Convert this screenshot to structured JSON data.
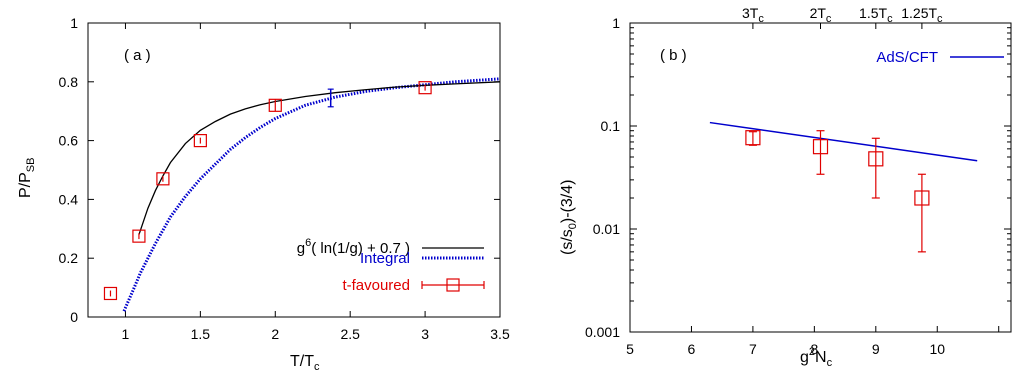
{
  "chart_data": [
    {
      "type": "line",
      "panel_label": "( a )",
      "xlabel": {
        "main": "T/T",
        "sub": "c"
      },
      "ylabel": {
        "main": "P/P",
        "sub": "SB"
      },
      "xlim": [
        0.75,
        3.5
      ],
      "ylim": [
        0,
        1
      ],
      "x_ticks": [
        "1",
        "1.5",
        "2",
        "2.5",
        "3",
        "3.5"
      ],
      "y_ticks": [
        "0",
        "0.2",
        "0.4",
        "0.6",
        "0.8",
        "1"
      ],
      "grid": false,
      "legend_position": "bottom-right",
      "legend": [
        {
          "label_parts": [
            "g",
            "6",
            "( ln(1/g) + 0.7 )"
          ],
          "color": "#000000",
          "style": "solid"
        },
        {
          "label": "Integral",
          "color": "#0000cc",
          "style": "dotted"
        },
        {
          "label": "t-favoured",
          "color": "#e00000",
          "style": "square-errorbar"
        }
      ],
      "series": [
        {
          "key": "g6",
          "color": "#000000",
          "x": [
            1.09,
            1.15,
            1.2,
            1.25,
            1.3,
            1.4,
            1.5,
            1.6,
            1.7,
            1.8,
            1.9,
            2.0,
            2.2,
            2.4,
            2.6,
            2.8,
            3.0,
            3.2,
            3.5
          ],
          "y": [
            0.28,
            0.37,
            0.43,
            0.48,
            0.525,
            0.59,
            0.635,
            0.665,
            0.69,
            0.708,
            0.722,
            0.733,
            0.75,
            0.763,
            0.773,
            0.782,
            0.788,
            0.793,
            0.8
          ]
        },
        {
          "key": "integral",
          "color": "#0000cc",
          "x": [
            0.99,
            1.05,
            1.1,
            1.2,
            1.3,
            1.4,
            1.5,
            1.6,
            1.7,
            1.8,
            1.9,
            2.0,
            2.2,
            2.4,
            2.6,
            2.8,
            3.0,
            3.2,
            3.5
          ],
          "y": [
            0.02,
            0.09,
            0.15,
            0.25,
            0.34,
            0.41,
            0.47,
            0.52,
            0.57,
            0.61,
            0.645,
            0.675,
            0.72,
            0.748,
            0.767,
            0.78,
            0.79,
            0.8,
            0.81
          ],
          "markers": [
            {
              "x": 2.37,
              "y": 0.745,
              "err": 0.03
            }
          ]
        },
        {
          "key": "tfav",
          "color": "#e00000",
          "points": [
            {
              "x": 0.9,
              "y": 0.08,
              "err": 0.01
            },
            {
              "x": 1.09,
              "y": 0.275,
              "err": 0.01
            },
            {
              "x": 1.25,
              "y": 0.47,
              "err": 0.01
            },
            {
              "x": 1.5,
              "y": 0.6,
              "err": 0.01
            },
            {
              "x": 2.0,
              "y": 0.72,
              "err": 0.02
            },
            {
              "x": 3.0,
              "y": 0.78,
              "err": 0.01
            }
          ]
        }
      ]
    },
    {
      "type": "line",
      "panel_label": "( b )",
      "xlabel": {
        "pre": "g",
        "sup": "2",
        "mid": "N",
        "sub": "c"
      },
      "ylabel": {
        "pre": "(s/s",
        "sub": "0",
        "post": ")-(3/4)"
      },
      "xlim": [
        5,
        11.2
      ],
      "ylim": [
        0.001,
        1
      ],
      "y_scale": "log",
      "x_ticks": [
        "5",
        "6",
        "7",
        "8",
        "9",
        "10"
      ],
      "y_ticks": [
        "0.001",
        "0.01",
        "0.1",
        "1"
      ],
      "top_ticks": [
        {
          "x": 7.0,
          "main": "3T",
          "sub": "c"
        },
        {
          "x": 8.1,
          "main": "2T",
          "sub": "c"
        },
        {
          "x": 9.0,
          "main": "1.5T",
          "sub": "c"
        },
        {
          "x": 9.75,
          "main": "1.25T",
          "sub": "c"
        }
      ],
      "grid": false,
      "legend_position": "top-right",
      "legend": [
        {
          "label": "AdS/CFT",
          "color": "#0000cc",
          "style": "solid"
        }
      ],
      "series": [
        {
          "key": "ads",
          "color": "#0000cc",
          "x": [
            6.3,
            10.65
          ],
          "y": [
            0.108,
            0.046
          ]
        },
        {
          "key": "points",
          "color": "#e00000",
          "points": [
            {
              "x": 7.0,
              "y": 0.077,
              "lo": 0.065,
              "hi": 0.088
            },
            {
              "x": 8.1,
              "y": 0.063,
              "lo": 0.034,
              "hi": 0.09
            },
            {
              "x": 9.0,
              "y": 0.048,
              "lo": 0.02,
              "hi": 0.076
            },
            {
              "x": 9.75,
              "y": 0.02,
              "lo": 0.006,
              "hi": 0.034
            }
          ]
        }
      ]
    }
  ]
}
